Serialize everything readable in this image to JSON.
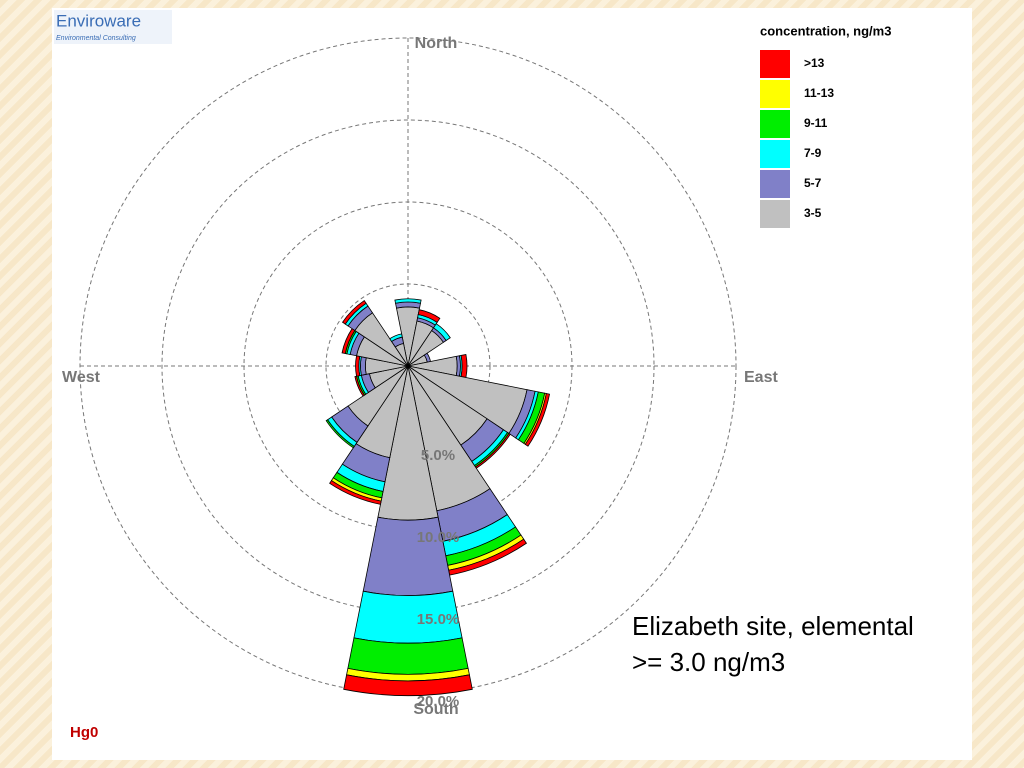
{
  "chart_data": {
    "type": "rose",
    "title": "Hg0",
    "brand": "Enviroware",
    "brand_subtitle": "Environmental Consulting",
    "legend_title": "concentration, ng/m3",
    "annotation": "Elizabeth site, elemental >= 3.0 ng/m3",
    "compass_labels": [
      "North",
      "East",
      "South",
      "West"
    ],
    "x": [
      0,
      22.5,
      45,
      67.5,
      90,
      112.5,
      135,
      157.5,
      180,
      202.5,
      225,
      247.5,
      270,
      292.5,
      315,
      337.5
    ],
    "rlim": [
      0,
      20
    ],
    "rticks": [
      {
        "value": 5,
        "label": "5.0%"
      },
      {
        "value": 10,
        "label": "10.0%"
      },
      {
        "value": 15,
        "label": "15.0%"
      },
      {
        "value": 20,
        "label": "20.0%"
      }
    ],
    "grid": true,
    "legend": "upper right",
    "series": [
      {
        "name": ">13",
        "color": "#ff0000",
        "values": [
          0,
          0.3,
          0,
          0,
          0.3,
          0.2,
          0.1,
          0.3,
          0.9,
          0.2,
          0,
          0.1,
          0.2,
          0.2,
          0.2,
          0
        ]
      },
      {
        "name": "11-13",
        "color": "#ffff00",
        "values": [
          0,
          0,
          0,
          0,
          0,
          0.1,
          0,
          0.3,
          0.4,
          0.2,
          0,
          0,
          0,
          0,
          0,
          0
        ]
      },
      {
        "name": "9-11",
        "color": "#00ee00",
        "values": [
          0,
          0,
          0,
          0,
          0,
          0.4,
          0.1,
          0.6,
          1.9,
          0.4,
          0.1,
          0.1,
          0,
          0.1,
          0,
          0
        ]
      },
      {
        "name": "7-9",
        "color": "#00ffff",
        "values": [
          0.2,
          0.2,
          0.3,
          0,
          0.1,
          0.2,
          0.3,
          0.9,
          2.9,
          0.6,
          0.3,
          0.2,
          0.1,
          0.2,
          0.2,
          0.2
        ]
      },
      {
        "name": "5-7",
        "color": "#8080c8",
        "values": [
          0.3,
          0.2,
          0.2,
          0.2,
          0.2,
          0.5,
          1.2,
          1.9,
          4.6,
          1.5,
          1.2,
          0.5,
          0.3,
          0.4,
          0.5,
          0.4
        ]
      },
      {
        "name": "3-5",
        "color": "#c0c0c0",
        "values": [
          3.6,
          2.8,
          2.6,
          1.2,
          3.0,
          7.4,
          5.8,
          9.0,
          9.4,
          5.7,
          4.4,
          2.4,
          2.6,
          3.2,
          3.9,
          1.4
        ]
      }
    ]
  }
}
